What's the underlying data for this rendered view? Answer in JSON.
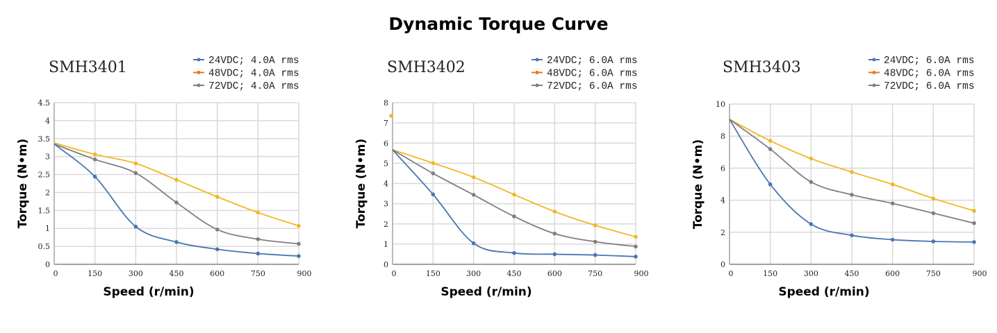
{
  "title": "Dynamic Torque Curve",
  "colors": {
    "24VDC_line": "#4a76b0",
    "48VDC_line": "#f0b820",
    "48VDC_legend": "#e8761e",
    "72VDC_line": "#7f7f7f",
    "grid": "#d9d9d9"
  },
  "chart_data": [
    {
      "type": "line",
      "title": "SMH3401",
      "xlabel": "Speed (r/min)",
      "ylabel": "Torque (N•m)",
      "x": [
        0,
        150,
        300,
        450,
        600,
        750,
        900
      ],
      "xlim": [
        0,
        900
      ],
      "ylim": [
        0,
        4.5
      ],
      "yticks": [
        "0",
        "0.5",
        "1",
        "1.5",
        "2",
        "2.5",
        "3",
        "3.5",
        "4",
        "4.5"
      ],
      "yticks_values": [
        0,
        0.5,
        1,
        1.5,
        2,
        2.5,
        3,
        3.5,
        4,
        4.5
      ],
      "xticks": [
        "0",
        "150",
        "300",
        "450",
        "600",
        "750",
        "900"
      ],
      "grid": true,
      "legend": "top-right",
      "series": [
        {
          "name": "24VDC; 4.0A rms",
          "values": [
            3.35,
            2.44,
            1.05,
            0.62,
            0.42,
            0.3,
            0.23
          ]
        },
        {
          "name": "48VDC; 4.0A rms",
          "values": [
            3.38,
            3.06,
            2.81,
            2.35,
            1.88,
            1.44,
            1.07
          ]
        },
        {
          "name": "72VDC; 4.0A rms",
          "values": [
            3.35,
            2.92,
            2.54,
            1.72,
            0.97,
            0.7,
            0.57
          ]
        }
      ]
    },
    {
      "type": "line",
      "title": "SMH3402",
      "xlabel": "Speed (r/min)",
      "ylabel": "Torque (N•m)",
      "x": [
        0,
        150,
        300,
        450,
        600,
        750,
        900
      ],
      "xlim": [
        0,
        900
      ],
      "ylim": [
        0,
        8
      ],
      "yticks": [
        "0",
        "1",
        "2",
        "3",
        "4",
        "5",
        "6",
        "7",
        "8"
      ],
      "yticks_values": [
        0,
        1,
        2,
        3,
        4,
        5,
        6,
        7,
        8
      ],
      "xticks": [
        "0",
        "150",
        "300",
        "450",
        "600",
        "750",
        "900"
      ],
      "grid": true,
      "legend": "top-right",
      "series": [
        {
          "name": "24VDC; 6.0A rms",
          "values": [
            5.67,
            3.46,
            1.04,
            0.56,
            0.5,
            0.46,
            0.38
          ]
        },
        {
          "name": "48VDC; 6.0A rms",
          "values": [
            5.67,
            5.01,
            4.31,
            3.45,
            2.61,
            1.93,
            1.36
          ],
          "extra_point": {
            "x": 0,
            "y": 7.35
          }
        },
        {
          "name": "72VDC; 6.0A rms",
          "values": [
            5.67,
            4.5,
            3.44,
            2.37,
            1.52,
            1.12,
            0.88
          ]
        }
      ]
    },
    {
      "type": "line",
      "title": "SMH3403",
      "xlabel": "Speed (r/min)",
      "ylabel": "Torque (N•m)",
      "x": [
        0,
        150,
        300,
        450,
        600,
        750,
        900
      ],
      "xlim": [
        0,
        900
      ],
      "ylim": [
        0,
        10
      ],
      "yticks": [
        "0",
        "2",
        "4",
        "6",
        "8",
        "10"
      ],
      "yticks_values": [
        0,
        2,
        4,
        6,
        8,
        10
      ],
      "xticks": [
        "0",
        "150",
        "300",
        "450",
        "600",
        "750",
        "900"
      ],
      "grid": true,
      "legend": "top-right",
      "series": [
        {
          "name": "24VDC; 6.0A rms",
          "values": [
            9.05,
            4.99,
            2.51,
            1.81,
            1.54,
            1.43,
            1.39
          ]
        },
        {
          "name": "48VDC; 6.0A rms",
          "values": [
            9.05,
            7.71,
            6.6,
            5.76,
            4.99,
            4.11,
            3.34
          ]
        },
        {
          "name": "72VDC; 6.0A rms",
          "values": [
            9.05,
            7.19,
            5.14,
            4.34,
            3.8,
            3.19,
            2.57
          ]
        }
      ]
    }
  ]
}
